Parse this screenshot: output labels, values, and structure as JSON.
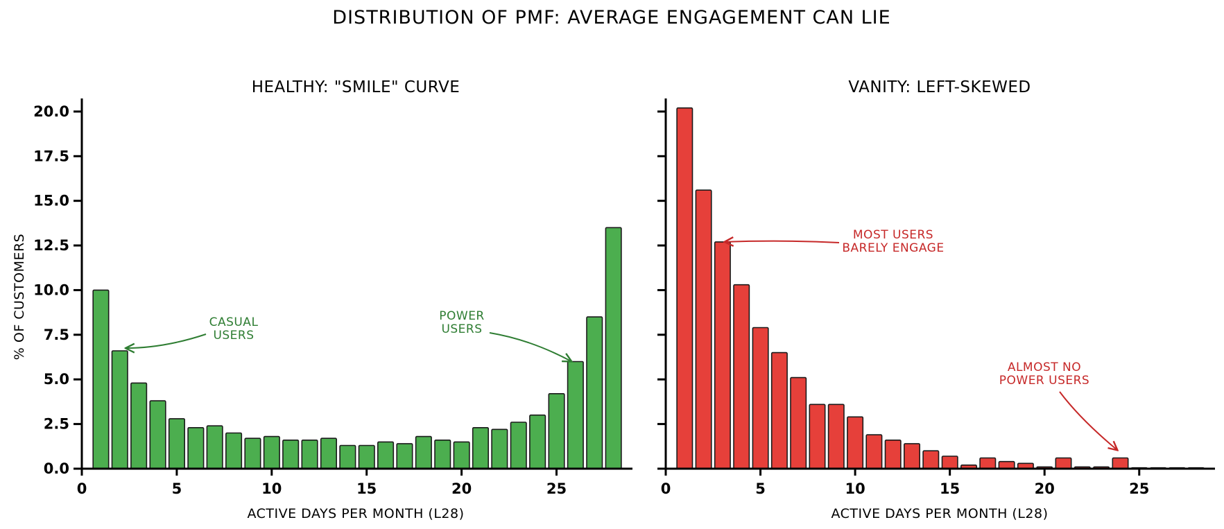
{
  "figure_title": "DISTRIBUTION OF PMF: AVERAGE ENGAGEMENT CAN LIE",
  "colors": {
    "healthy_bar": "#4cae4f",
    "vanity_bar": "#e6403a",
    "healthy_annotation": "#2e7d32",
    "vanity_annotation": "#c62828"
  },
  "chart_data": [
    {
      "type": "bar",
      "title": "HEALTHY: \"SMILE\" CURVE",
      "xlabel": "ACTIVE DAYS PER MONTH (L28)",
      "ylabel": "% OF CUSTOMERS",
      "xlim": [
        0,
        29
      ],
      "ylim": [
        0,
        20.5
      ],
      "xticks": [
        "0",
        "5",
        "10",
        "15",
        "20",
        "25"
      ],
      "yticks": [
        "0.0",
        "2.5",
        "5.0",
        "7.5",
        "10.0",
        "12.5",
        "15.0",
        "17.5",
        "20.0"
      ],
      "y_tick_labels_visible": true,
      "grid": false,
      "x": [
        1,
        2,
        3,
        4,
        5,
        6,
        7,
        8,
        9,
        10,
        11,
        12,
        13,
        14,
        15,
        16,
        17,
        18,
        19,
        20,
        21,
        22,
        23,
        24,
        25,
        26,
        27,
        28
      ],
      "values": [
        10.0,
        6.6,
        4.8,
        3.8,
        2.8,
        2.3,
        2.4,
        2.0,
        1.7,
        1.8,
        1.6,
        1.6,
        1.7,
        1.3,
        1.3,
        1.5,
        1.4,
        1.8,
        1.6,
        1.5,
        2.3,
        2.2,
        2.6,
        3.0,
        4.2,
        6.0,
        8.5,
        13.5
      ],
      "annotations": [
        {
          "text": "CASUAL\nUSERS",
          "target_x": 2.3,
          "target_y": 6.75
        },
        {
          "text": "POWER\nUSERS",
          "target_x": 25.8,
          "target_y": 6.0
        }
      ]
    },
    {
      "type": "bar",
      "title": "VANITY: LEFT-SKEWED",
      "xlabel": "ACTIVE DAYS PER MONTH (L28)",
      "xlim": [
        0,
        29
      ],
      "ylim": [
        0,
        20.5
      ],
      "xticks": [
        "0",
        "5",
        "10",
        "15",
        "20",
        "25"
      ],
      "y_tick_labels_visible": false,
      "grid": false,
      "x": [
        1,
        2,
        3,
        4,
        5,
        6,
        7,
        8,
        9,
        10,
        11,
        12,
        13,
        14,
        15,
        16,
        17,
        18,
        19,
        20,
        21,
        22,
        23,
        24,
        25,
        26,
        27,
        28
      ],
      "values": [
        20.2,
        15.6,
        12.7,
        10.3,
        7.9,
        6.5,
        5.1,
        3.6,
        3.6,
        2.9,
        1.9,
        1.6,
        1.4,
        1.0,
        0.7,
        0.2,
        0.6,
        0.4,
        0.3,
        0.1,
        0.6,
        0.1,
        0.1,
        0.6,
        0.05,
        0.05,
        0.05,
        0.05
      ],
      "annotations": [
        {
          "text": "MOST USERS\nBARELY ENGAGE",
          "target_x": 3.1,
          "target_y": 12.7
        },
        {
          "text": "ALMOST NO\nPOWER USERS",
          "target_x": 24.0,
          "target_y": 0.8
        }
      ]
    }
  ]
}
